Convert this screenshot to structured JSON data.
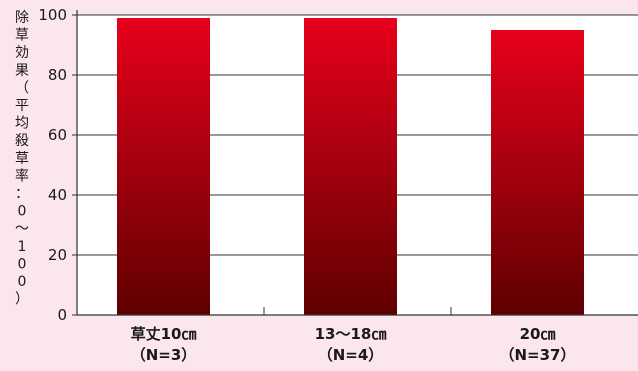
{
  "chart_data": {
    "type": "bar",
    "ylabel_chars": [
      "除",
      "草",
      "効",
      "果",
      "（",
      "平",
      "均",
      "殺",
      "草",
      "率",
      "：",
      "0",
      "〜",
      "1",
      "0",
      "0",
      "）"
    ],
    "ylim": [
      0,
      100
    ],
    "yticks": [
      0,
      20,
      40,
      60,
      80,
      100
    ],
    "grid": true,
    "categories": [
      {
        "line1": "草丈10㎝",
        "line2": "（N=3）"
      },
      {
        "line1": "13〜18㎝",
        "line2": "（N=4）"
      },
      {
        "line1": "20㎝",
        "line2": "（N=37）"
      }
    ],
    "values": [
      99,
      99,
      95
    ],
    "colors": {
      "bar_top": "#e8001b",
      "bar_bottom": "#5e0000",
      "plot_bg": "#ffffff",
      "axis": "#333333",
      "grid": "#333333"
    }
  }
}
